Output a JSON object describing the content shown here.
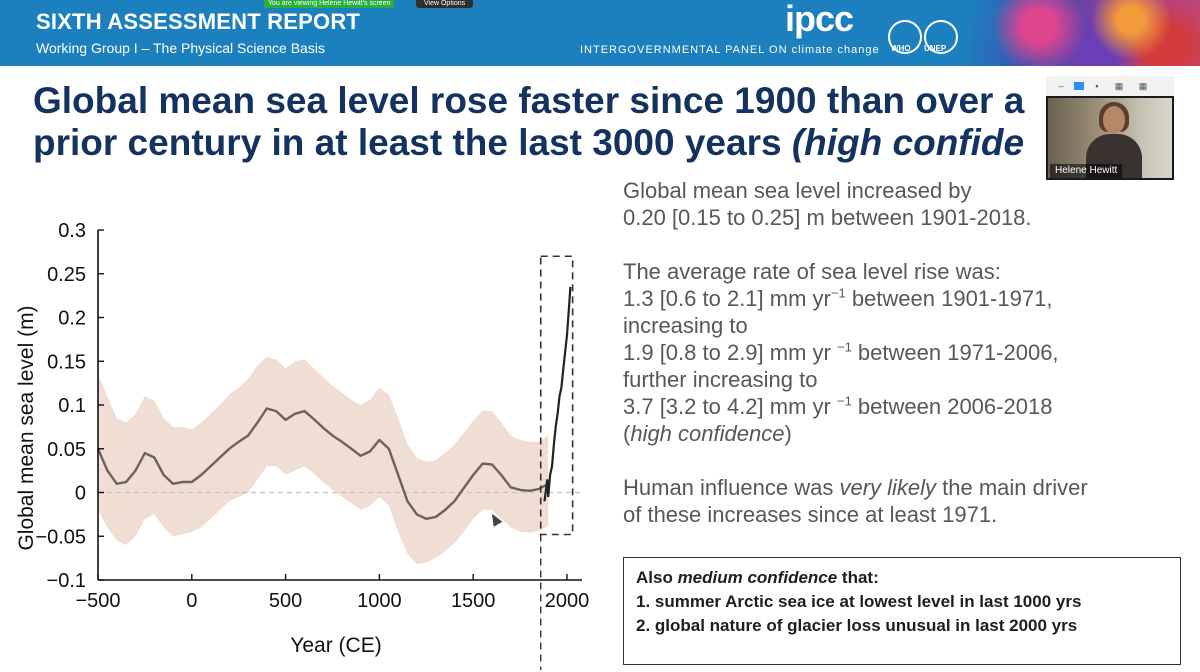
{
  "banner": {
    "report_title": "SIXTH ASSESSMENT REPORT",
    "report_subtitle": "Working Group I – The Physical Science Basis",
    "ipcc_logo": "ipcc",
    "ipcc_tagline": "INTERGOVERNMENTAL PANEL ON climate change",
    "orgs": [
      "WHO",
      "UNEP"
    ],
    "colors": {
      "banner": "#1c80bf",
      "heading": "#13325f"
    }
  },
  "zoom": {
    "notice": "You are viewing Helene Hewitt's screen",
    "view_options": "View Options",
    "participant_name": "Helene Hewitt",
    "toolbar_icons": [
      "minimize-icon",
      "speaker-view-icon",
      "gallery-view-icon",
      "fullscreen-icon"
    ]
  },
  "slide": {
    "heading_line1": "Global mean sea level rose faster since 1900 than over a",
    "heading_line2_plain": "prior century in at least the last 3000 years ",
    "heading_line2_italic": "(high confide",
    "facts": {
      "p1_line1": "Global mean sea level increased by",
      "p1_line2": "0.20 [0.15 to 0.25] m between 1901-2018.",
      "p2_line1": "The average rate of sea level rise was:",
      "rate1_pre": "1.3 [0.6 to 2.1] mm yr",
      "rate1_post": " between 1901-1971,",
      "p2_line3": "increasing to",
      "rate2_pre": "1.9 [0.8 to 2.9] mm yr ",
      "rate2_post": " between 1971-2006,",
      "p2_line5": "further increasing to",
      "rate3_pre": "3.7 [3.2 to 4.2] mm yr ",
      "rate3_post": " between 2006-2018",
      "conf_open": "(",
      "conf_italic": "high confidence",
      "conf_close": ")",
      "exponent": "−1",
      "p3_line1_pre": "Human influence was ",
      "p3_line1_italic": "very likely",
      "p3_line1_post": " the main driver",
      "p3_line2": "of these increases since at least 1971."
    },
    "callout": {
      "title_pre": "Also ",
      "title_italic": "medium confidence",
      "title_post": " that:",
      "item1": "1. summer Arctic sea ice at lowest level in last 1000 yrs",
      "item2": "2. global nature of glacier loss unusual in last 2000 yrs"
    }
  },
  "chart_data": {
    "type": "line",
    "title": "",
    "xlabel": "Year (CE)",
    "ylabel": "Global mean sea level (m)",
    "xlim": [
      -500,
      2020
    ],
    "ylim": [
      -0.1,
      0.3
    ],
    "x_ticks": [
      -500,
      0,
      500,
      1000,
      1500,
      2000
    ],
    "x_tick_labels": [
      "−500",
      "0",
      "500",
      "1000",
      "1500",
      "2000"
    ],
    "y_ticks": [
      -0.1,
      -0.05,
      0,
      0.05,
      0.1,
      0.15,
      0.2,
      0.25,
      0.3
    ],
    "y_tick_labels": [
      "−0.1",
      "−0.05",
      "0",
      "0.05",
      "0.1",
      "0.15",
      "0.2",
      "0.25",
      "0.3"
    ],
    "zero_line": true,
    "grid": false,
    "series": [
      {
        "kind": "reconstruction",
        "color": "#6b625a",
        "band_color": "#f0ddd3",
        "x": [
          -500,
          -450,
          -400,
          -350,
          -300,
          -250,
          -200,
          -150,
          -100,
          -50,
          0,
          50,
          100,
          150,
          200,
          250,
          300,
          350,
          400,
          450,
          500,
          550,
          600,
          650,
          700,
          750,
          800,
          850,
          900,
          950,
          1000,
          1050,
          1100,
          1150,
          1200,
          1250,
          1300,
          1350,
          1400,
          1450,
          1500,
          1550,
          1600,
          1650,
          1700,
          1750,
          1800,
          1850,
          1900
        ],
        "y": [
          0.05,
          0.025,
          0.01,
          0.012,
          0.025,
          0.045,
          0.04,
          0.02,
          0.01,
          0.012,
          0.012,
          0.02,
          0.03,
          0.04,
          0.05,
          0.058,
          0.065,
          0.08,
          0.096,
          0.093,
          0.083,
          0.09,
          0.093,
          0.084,
          0.074,
          0.065,
          0.058,
          0.05,
          0.042,
          0.047,
          0.06,
          0.05,
          0.02,
          -0.01,
          -0.025,
          -0.03,
          -0.028,
          -0.02,
          -0.01,
          0.005,
          0.02,
          0.033,
          0.032,
          0.02,
          0.006,
          0.003,
          0.002,
          0.004,
          0.01
        ],
        "lower": [
          -0.02,
          -0.04,
          -0.055,
          -0.06,
          -0.05,
          -0.03,
          -0.025,
          -0.04,
          -0.05,
          -0.048,
          -0.045,
          -0.04,
          -0.03,
          -0.02,
          -0.01,
          -0.005,
          0.0,
          0.015,
          0.03,
          0.03,
          0.02,
          0.025,
          0.03,
          0.022,
          0.012,
          0.003,
          -0.005,
          -0.012,
          -0.02,
          -0.015,
          -0.005,
          -0.015,
          -0.045,
          -0.07,
          -0.082,
          -0.08,
          -0.075,
          -0.067,
          -0.058,
          -0.045,
          -0.03,
          -0.02,
          -0.02,
          -0.03,
          -0.04,
          -0.045,
          -0.046,
          -0.044,
          -0.038
        ],
        "upper": [
          0.135,
          0.11,
          0.085,
          0.08,
          0.09,
          0.11,
          0.105,
          0.085,
          0.075,
          0.075,
          0.072,
          0.08,
          0.09,
          0.1,
          0.112,
          0.12,
          0.13,
          0.145,
          0.155,
          0.152,
          0.142,
          0.15,
          0.152,
          0.142,
          0.132,
          0.122,
          0.114,
          0.106,
          0.1,
          0.106,
          0.12,
          0.112,
          0.085,
          0.055,
          0.04,
          0.035,
          0.037,
          0.045,
          0.055,
          0.068,
          0.082,
          0.094,
          0.093,
          0.08,
          0.065,
          0.06,
          0.058,
          0.058,
          0.065
        ]
      },
      {
        "kind": "observations",
        "color": "#222222",
        "x": [
          1880,
          1895,
          1900,
          1910,
          1920,
          1930,
          1940,
          1950,
          1960,
          1970,
          1980,
          1990,
          2000,
          2010,
          2018
        ],
        "y": [
          -0.01,
          0.015,
          -0.005,
          0.02,
          0.03,
          0.055,
          0.075,
          0.09,
          0.11,
          0.12,
          0.14,
          0.16,
          0.18,
          0.21,
          0.235
        ]
      }
    ],
    "highlight_box": {
      "x": [
        1860,
        2030
      ],
      "y": [
        -0.048,
        0.27
      ]
    }
  }
}
